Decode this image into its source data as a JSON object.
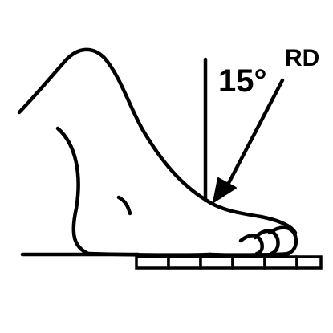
{
  "labels": {
    "angle": "15°",
    "projection": "RD"
  },
  "colors": {
    "ink": "#000000",
    "background": "#ffffff"
  },
  "icons": {
    "foot": "foot-outline",
    "beam": "central-beam-arrow",
    "plate": "detector-plate"
  }
}
